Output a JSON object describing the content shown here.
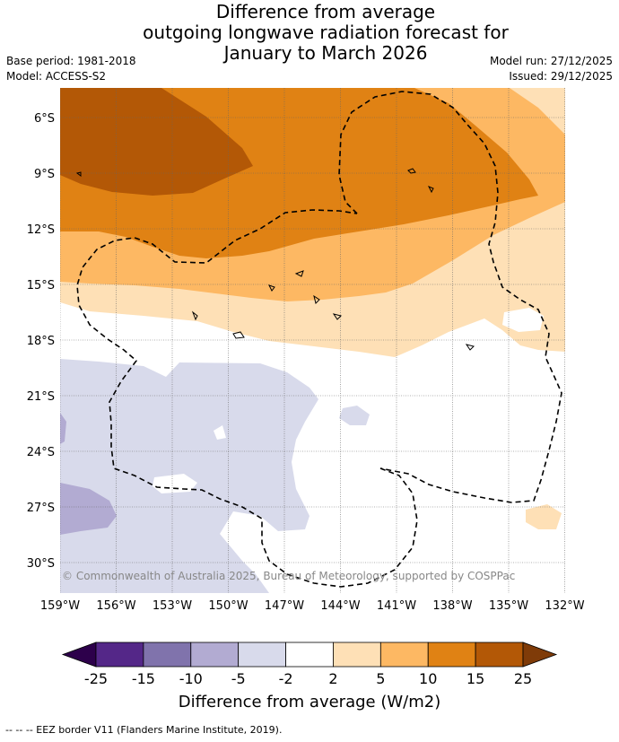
{
  "title": {
    "line1": "Difference from average",
    "line2": "outgoing longwave radiation forecast for",
    "line3": "January to March 2026"
  },
  "meta": {
    "base_period": "Base period: 1981-2018",
    "model": "Model: ACCESS-S2",
    "model_run": "Model run: 27/12/2025",
    "issued": "Issued: 29/12/2025"
  },
  "map": {
    "lat_ticks": [
      "6°S",
      "9°S",
      "12°S",
      "15°S",
      "18°S",
      "21°S",
      "24°S",
      "27°S",
      "30°S"
    ],
    "lon_ticks": [
      "159°W",
      "156°W",
      "153°W",
      "150°W",
      "147°W",
      "144°W",
      "141°W",
      "138°W",
      "135°W",
      "132°W"
    ],
    "copyright": "© Commonwealth of Australia 2025, Bureau of Meteorology, supported by COSPPac"
  },
  "colorbar": {
    "ticks": [
      "-25",
      "-15",
      "-10",
      "-5",
      "-2",
      "2",
      "5",
      "10",
      "15",
      "25"
    ],
    "colors": [
      "#2d004b",
      "#542788",
      "#8073ac",
      "#b2abd2",
      "#d8daeb",
      "#ffffff",
      "#fee0b6",
      "#fdb863",
      "#e08214",
      "#b35806",
      "#7f3b08"
    ],
    "title": "Difference from average (W/m2)"
  },
  "footnote": "--  --  -- EEZ border V11 (Flanders Marine Institute, 2019)."
}
